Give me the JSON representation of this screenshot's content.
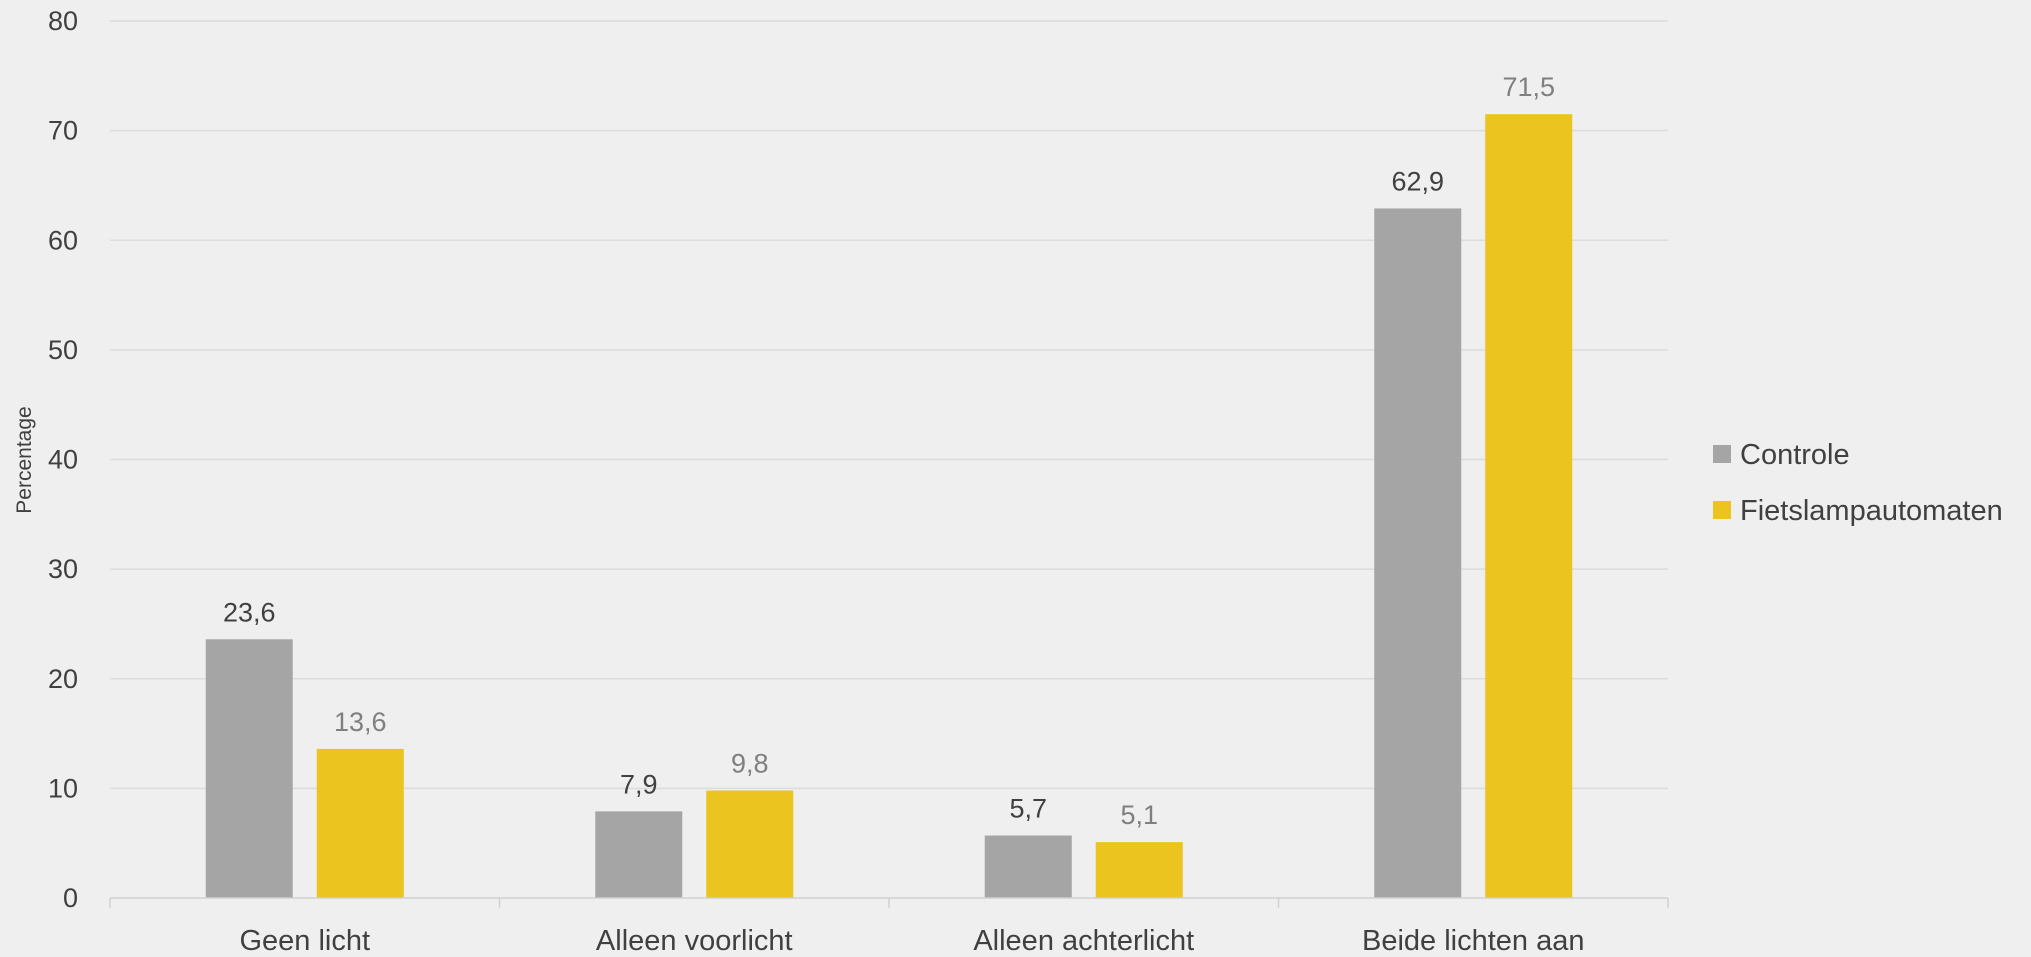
{
  "chart_data": {
    "type": "bar",
    "categories": [
      "Geen licht",
      "Alleen voorlicht",
      "Alleen achterlicht",
      "Beide lichten aan"
    ],
    "series": [
      {
        "name": "Controle",
        "values": [
          23.6,
          7.9,
          5.7,
          62.9
        ],
        "labels": [
          "23,6",
          "7,9",
          "5,7",
          "62,9"
        ],
        "color": "#a5a5a5",
        "label_color": "#404040"
      },
      {
        "name": "Fietslampautomaten",
        "values": [
          13.6,
          9.8,
          5.1,
          71.5
        ],
        "labels": [
          "13,6",
          "9,8",
          "5,1",
          "71,5"
        ],
        "color": "#ecc420",
        "label_color": "#7f7f7f"
      }
    ],
    "xlabel": "",
    "ylabel": "Percentage",
    "ylim": [
      0,
      80
    ],
    "yticks": [
      0,
      10,
      20,
      30,
      40,
      50,
      60,
      70,
      80
    ],
    "grid": true,
    "legend_position": "right",
    "colors": {
      "background": "#efefef",
      "grid": "#dcdcdc",
      "axis": "#d0d0d0"
    }
  }
}
